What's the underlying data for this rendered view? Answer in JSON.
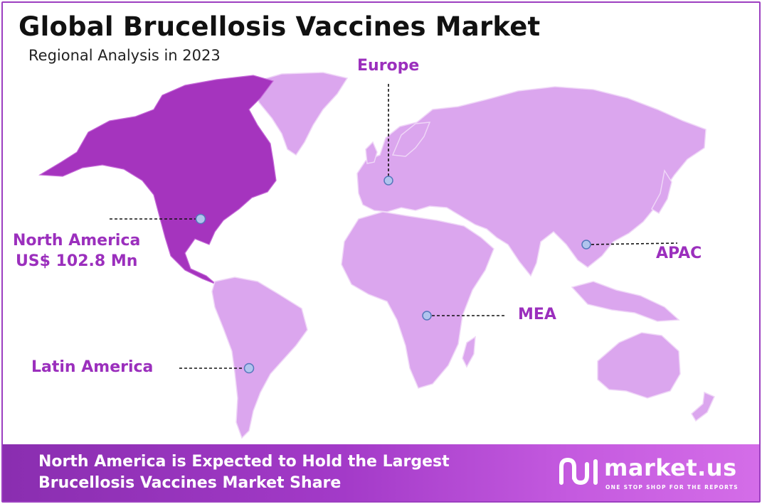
{
  "header": {
    "title": "Global Brucellosis Vaccines Market",
    "subtitle": "Regional Analysis in 2023"
  },
  "regions": [
    {
      "id": "north-america",
      "name": "North America",
      "value": "US$ 102.8 Mn",
      "highlighted": true
    },
    {
      "id": "europe",
      "name": "Europe"
    },
    {
      "id": "apac",
      "name": "APAC"
    },
    {
      "id": "mea",
      "name": "MEA"
    },
    {
      "id": "latin-america",
      "name": "Latin America"
    }
  ],
  "colors": {
    "highlight": "#a534be",
    "land": "#dba6ee",
    "label": "#9b2fbd",
    "banner_start": "#8a2eb0",
    "banner_end": "#d46de8"
  },
  "footer": {
    "line1": "North America is Expected to Hold the Largest",
    "line2": "Brucellosis Vaccines Market Share"
  },
  "brand": {
    "name": "market.us",
    "tagline": "ONE STOP SHOP FOR THE REPORTS",
    "logo_icon": "market-us-logo-icon"
  }
}
